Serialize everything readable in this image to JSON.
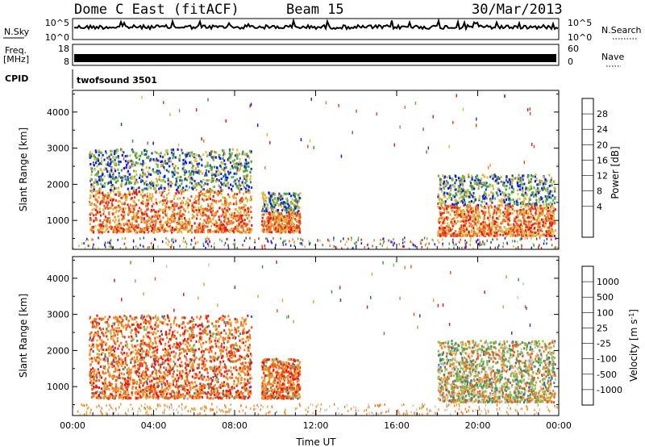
{
  "header": {
    "title": "Dome C East (fitACF)",
    "beam": "Beam 15",
    "date": "30/Mar/2013"
  },
  "top_panels": {
    "nsky_label": "N.Sky",
    "nsky_ticks": [
      "10^5",
      "10^0"
    ],
    "nsearch_label": "N.Search",
    "nsearch_ticks": [
      "10^5",
      "10^0"
    ],
    "freq_label_1": "Freq.",
    "freq_label_2": "[MHz]",
    "freq_ticks": [
      "18",
      "8"
    ],
    "nave_label": "Nave",
    "nave_ticks": [
      "60",
      "0"
    ],
    "cpid_label": "CPID",
    "cpid_value": "twofsound 3501"
  },
  "colors": {
    "power_scale": [
      "#0a14ff",
      "#1a47a8",
      "#3e8f4d",
      "#5fb44a",
      "#c8c84a",
      "#f0a83c",
      "#f07a2a",
      "#e84a1e",
      "#e81818"
    ],
    "velocity_scale": [
      "#2a3cd0",
      "#3a6aa6",
      "#4a8a6a",
      "#7cc64a",
      "#c8c8c8",
      "#f0a030",
      "#f08020",
      "#e85a20",
      "#e81818"
    ]
  },
  "chart_data": [
    {
      "type": "heatmap",
      "name": "power",
      "ylabel": "Slant Range [km]",
      "yticks": [
        "1000",
        "2000",
        "3000",
        "4000"
      ],
      "ylim": [
        200,
        4600
      ],
      "xlim_hours": [
        0,
        24
      ],
      "colorbar_label": "Power [dB]",
      "colorbar_ticks": [
        "4",
        "8",
        "12",
        "16",
        "20",
        "24",
        "28"
      ],
      "echo_regions": [
        {
          "t_start": 0.8,
          "t_end": 8.8,
          "range_min": 700,
          "range_max": 3000
        },
        {
          "t_start": 9.3,
          "t_end": 11.2,
          "range_min": 700,
          "range_max": 1800
        },
        {
          "t_start": 18.0,
          "t_end": 23.8,
          "range_min": 600,
          "range_max": 2300
        }
      ]
    },
    {
      "type": "heatmap",
      "name": "velocity",
      "ylabel": "Slant Range [km]",
      "yticks": [
        "1000",
        "2000",
        "3000",
        "4000"
      ],
      "ylim": [
        200,
        4600
      ],
      "xlim_hours": [
        0,
        24
      ],
      "colorbar_label": "Velocity [m s^-1]",
      "colorbar_ticks": [
        "1000",
        "500",
        "100",
        "25",
        "-25",
        "-100",
        "-500",
        "-1000"
      ],
      "echo_regions": [
        {
          "t_start": 0.8,
          "t_end": 8.8,
          "range_min": 700,
          "range_max": 3000
        },
        {
          "t_start": 9.3,
          "t_end": 11.2,
          "range_min": 700,
          "range_max": 1800
        },
        {
          "t_start": 18.0,
          "t_end": 23.8,
          "range_min": 600,
          "range_max": 2300
        }
      ]
    }
  ],
  "xaxis": {
    "ticks": [
      "00:00",
      "04:00",
      "08:00",
      "12:00",
      "16:00",
      "20:00",
      "00:00"
    ],
    "label": "Time UT"
  }
}
